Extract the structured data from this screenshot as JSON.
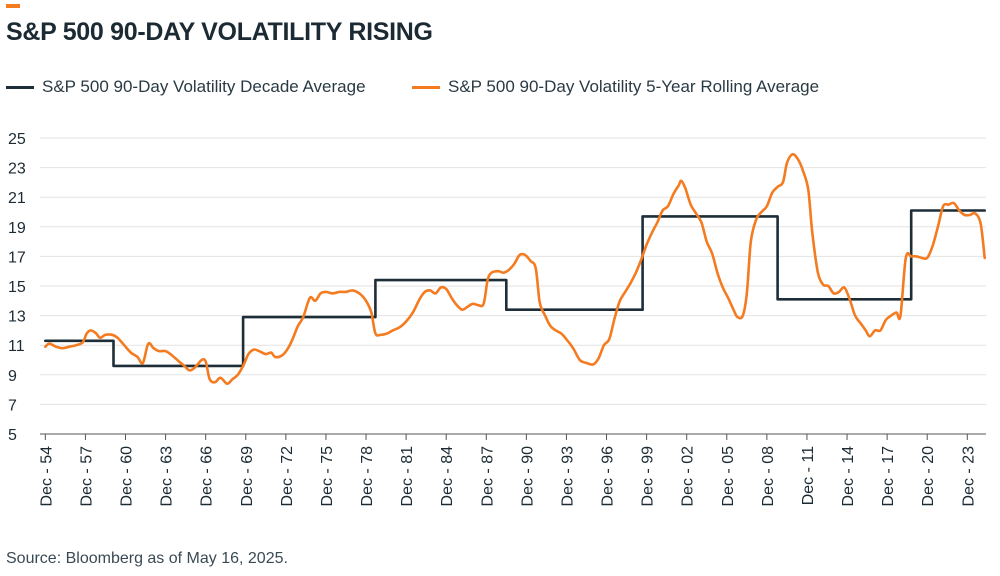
{
  "title": "S&P 500 90-DAY VOLATILITY RISING",
  "source": "Source: Bloomberg as of May 16, 2025.",
  "colors": {
    "accent": "#f47b20",
    "decade": "#1d2e38",
    "rolling": "#f47b20",
    "grid": "#e3e3e3",
    "axis": "#555555"
  },
  "chart_data": {
    "type": "line",
    "title": "S&P 500 90-DAY VOLATILITY RISING",
    "xlabel": "",
    "ylabel": "",
    "ylim": [
      5,
      25
    ],
    "xlim": [
      1954.6,
      2025.4
    ],
    "grid": true,
    "legend": "top-left",
    "yticks": [
      5,
      7,
      9,
      11,
      13,
      15,
      17,
      19,
      21,
      23,
      25
    ],
    "xticks": [
      {
        "x": 1955,
        "label": "Dec - 54"
      },
      {
        "x": 1958,
        "label": "Dec - 57"
      },
      {
        "x": 1961,
        "label": "Dec - 60"
      },
      {
        "x": 1964,
        "label": "Dec - 63"
      },
      {
        "x": 1967,
        "label": "Dec - 66"
      },
      {
        "x": 1970,
        "label": "Dec - 69"
      },
      {
        "x": 1973,
        "label": "Dec - 72"
      },
      {
        "x": 1976,
        "label": "Dec - 75"
      },
      {
        "x": 1979,
        "label": "Dec - 78"
      },
      {
        "x": 1982,
        "label": "Dec - 81"
      },
      {
        "x": 1985,
        "label": "Dec - 84"
      },
      {
        "x": 1988,
        "label": "Dec - 87"
      },
      {
        "x": 1991,
        "label": "Dec - 90"
      },
      {
        "x": 1994,
        "label": "Dec - 93"
      },
      {
        "x": 1997,
        "label": "Dec - 96"
      },
      {
        "x": 2000,
        "label": "Dec - 99"
      },
      {
        "x": 2003,
        "label": "Dec - 02"
      },
      {
        "x": 2006,
        "label": "Dec - 05"
      },
      {
        "x": 2009,
        "label": "Dec - 08"
      },
      {
        "x": 2012,
        "label": "Dec - 11"
      },
      {
        "x": 2015,
        "label": "Dec - 14"
      },
      {
        "x": 2018,
        "label": "Dec - 17"
      },
      {
        "x": 2021,
        "label": "Dec - 20"
      },
      {
        "x": 2024,
        "label": "Dec - 23"
      }
    ],
    "series": [
      {
        "name": "S&P 500 90-Day Volatility Decade Average",
        "step": true,
        "points": [
          [
            1955,
            11.3
          ],
          [
            1960.1,
            11.3
          ],
          [
            1960.1,
            9.6
          ],
          [
            1969.8,
            9.6
          ],
          [
            1969.8,
            12.9
          ],
          [
            1979.7,
            12.9
          ],
          [
            1979.7,
            15.4
          ],
          [
            1989.5,
            15.4
          ],
          [
            1989.5,
            13.4
          ],
          [
            1999.7,
            13.4
          ],
          [
            1999.7,
            19.7
          ],
          [
            2009.8,
            19.7
          ],
          [
            2009.8,
            14.1
          ],
          [
            2019.8,
            14.1
          ],
          [
            2019.8,
            20.1
          ],
          [
            2025.3,
            20.1
          ]
        ]
      },
      {
        "name": "S&P 500 90-Day Volatility 5-Year Rolling Average",
        "step": false,
        "points": [
          [
            1955,
            10.9
          ],
          [
            1955.3,
            11.1
          ],
          [
            1955.8,
            10.9
          ],
          [
            1956.3,
            10.8
          ],
          [
            1956.8,
            10.9
          ],
          [
            1957.3,
            11.0
          ],
          [
            1957.8,
            11.2
          ],
          [
            1958.1,
            11.8
          ],
          [
            1958.4,
            12.0
          ],
          [
            1958.8,
            11.8
          ],
          [
            1959.1,
            11.5
          ],
          [
            1959.5,
            11.7
          ],
          [
            1960.0,
            11.7
          ],
          [
            1960.4,
            11.5
          ],
          [
            1960.9,
            11.0
          ],
          [
            1961.4,
            10.5
          ],
          [
            1961.9,
            10.2
          ],
          [
            1962.3,
            9.8
          ],
          [
            1962.7,
            11.1
          ],
          [
            1963.1,
            10.8
          ],
          [
            1963.5,
            10.6
          ],
          [
            1964.0,
            10.6
          ],
          [
            1964.5,
            10.3
          ],
          [
            1965.0,
            9.9
          ],
          [
            1965.4,
            9.6
          ],
          [
            1965.8,
            9.3
          ],
          [
            1966.2,
            9.5
          ],
          [
            1966.7,
            10.0
          ],
          [
            1967.0,
            9.9
          ],
          [
            1967.3,
            8.7
          ],
          [
            1967.7,
            8.5
          ],
          [
            1968.1,
            8.8
          ],
          [
            1968.6,
            8.4
          ],
          [
            1969.0,
            8.7
          ],
          [
            1969.4,
            9.0
          ],
          [
            1969.8,
            9.6
          ],
          [
            1970.2,
            10.4
          ],
          [
            1970.6,
            10.7
          ],
          [
            1971.0,
            10.6
          ],
          [
            1971.5,
            10.4
          ],
          [
            1971.9,
            10.5
          ],
          [
            1972.2,
            10.2
          ],
          [
            1972.7,
            10.3
          ],
          [
            1973.1,
            10.7
          ],
          [
            1973.5,
            11.4
          ],
          [
            1973.9,
            12.3
          ],
          [
            1974.3,
            12.9
          ],
          [
            1974.8,
            14.2
          ],
          [
            1975.2,
            14.0
          ],
          [
            1975.6,
            14.5
          ],
          [
            1976.0,
            14.6
          ],
          [
            1976.5,
            14.5
          ],
          [
            1977.0,
            14.6
          ],
          [
            1977.5,
            14.6
          ],
          [
            1978.0,
            14.7
          ],
          [
            1978.5,
            14.5
          ],
          [
            1979.0,
            14.0
          ],
          [
            1979.4,
            13.2
          ],
          [
            1979.7,
            11.8
          ],
          [
            1980.1,
            11.7
          ],
          [
            1980.6,
            11.8
          ],
          [
            1981.0,
            12.0
          ],
          [
            1981.5,
            12.2
          ],
          [
            1982.0,
            12.6
          ],
          [
            1982.5,
            13.2
          ],
          [
            1983.0,
            14.1
          ],
          [
            1983.4,
            14.6
          ],
          [
            1983.8,
            14.7
          ],
          [
            1984.2,
            14.5
          ],
          [
            1984.6,
            14.9
          ],
          [
            1985.0,
            14.8
          ],
          [
            1985.4,
            14.2
          ],
          [
            1985.8,
            13.7
          ],
          [
            1986.2,
            13.4
          ],
          [
            1986.6,
            13.6
          ],
          [
            1987.0,
            13.8
          ],
          [
            1987.4,
            13.7
          ],
          [
            1987.8,
            13.8
          ],
          [
            1988.1,
            15.4
          ],
          [
            1988.4,
            15.9
          ],
          [
            1988.9,
            16.0
          ],
          [
            1989.3,
            15.9
          ],
          [
            1989.7,
            16.1
          ],
          [
            1990.1,
            16.5
          ],
          [
            1990.5,
            17.1
          ],
          [
            1990.9,
            17.1
          ],
          [
            1991.3,
            16.7
          ],
          [
            1991.7,
            16.2
          ],
          [
            1992.0,
            13.9
          ],
          [
            1992.4,
            13.0
          ],
          [
            1992.8,
            12.3
          ],
          [
            1993.2,
            12.0
          ],
          [
            1993.6,
            11.8
          ],
          [
            1994.0,
            11.4
          ],
          [
            1994.5,
            10.8
          ],
          [
            1995.0,
            10.0
          ],
          [
            1995.5,
            9.8
          ],
          [
            1996.0,
            9.7
          ],
          [
            1996.4,
            10.1
          ],
          [
            1996.8,
            11.0
          ],
          [
            1997.2,
            11.4
          ],
          [
            1997.6,
            12.8
          ],
          [
            1998.0,
            14.0
          ],
          [
            1998.4,
            14.6
          ],
          [
            1998.8,
            15.2
          ],
          [
            1999.2,
            15.9
          ],
          [
            1999.6,
            16.8
          ],
          [
            2000.0,
            17.8
          ],
          [
            2000.4,
            18.6
          ],
          [
            2000.8,
            19.3
          ],
          [
            2001.2,
            20.1
          ],
          [
            2001.6,
            20.4
          ],
          [
            2002.0,
            21.2
          ],
          [
            2002.4,
            21.8
          ],
          [
            2002.6,
            22.1
          ],
          [
            2002.9,
            21.6
          ],
          [
            2003.3,
            20.5
          ],
          [
            2003.7,
            19.9
          ],
          [
            2004.1,
            19.3
          ],
          [
            2004.5,
            18.0
          ],
          [
            2004.9,
            17.2
          ],
          [
            2005.3,
            15.9
          ],
          [
            2005.7,
            14.9
          ],
          [
            2006.1,
            14.2
          ],
          [
            2006.5,
            13.4
          ],
          [
            2006.8,
            12.9
          ],
          [
            2007.2,
            13.0
          ],
          [
            2007.5,
            14.5
          ],
          [
            2007.8,
            18.0
          ],
          [
            2008.2,
            19.5
          ],
          [
            2008.6,
            20.0
          ],
          [
            2009.0,
            20.4
          ],
          [
            2009.4,
            21.3
          ],
          [
            2009.8,
            21.7
          ],
          [
            2010.2,
            22.0
          ],
          [
            2010.5,
            23.3
          ],
          [
            2010.9,
            23.9
          ],
          [
            2011.3,
            23.6
          ],
          [
            2011.7,
            22.8
          ],
          [
            2012.1,
            21.5
          ],
          [
            2012.4,
            18.6
          ],
          [
            2012.8,
            16.0
          ],
          [
            2013.2,
            15.1
          ],
          [
            2013.6,
            15.0
          ],
          [
            2014.0,
            14.5
          ],
          [
            2014.4,
            14.6
          ],
          [
            2014.8,
            14.9
          ],
          [
            2015.2,
            14.1
          ],
          [
            2015.6,
            13.0
          ],
          [
            2016.0,
            12.5
          ],
          [
            2016.4,
            12.0
          ],
          [
            2016.7,
            11.6
          ],
          [
            2017.1,
            12.0
          ],
          [
            2017.5,
            12.0
          ],
          [
            2017.9,
            12.7
          ],
          [
            2018.3,
            13.0
          ],
          [
            2018.7,
            13.2
          ],
          [
            2019.0,
            13.0
          ],
          [
            2019.4,
            16.9
          ],
          [
            2019.8,
            17.0
          ],
          [
            2020.2,
            17.0
          ],
          [
            2020.6,
            16.9
          ],
          [
            2021.0,
            16.9
          ],
          [
            2021.4,
            17.7
          ],
          [
            2021.8,
            19.0
          ],
          [
            2022.2,
            20.4
          ],
          [
            2022.6,
            20.5
          ],
          [
            2023.0,
            20.6
          ],
          [
            2023.4,
            20.1
          ],
          [
            2023.8,
            19.8
          ],
          [
            2024.2,
            19.8
          ],
          [
            2024.6,
            19.9
          ],
          [
            2025.0,
            19.2
          ],
          [
            2025.3,
            16.9
          ]
        ]
      }
    ]
  }
}
